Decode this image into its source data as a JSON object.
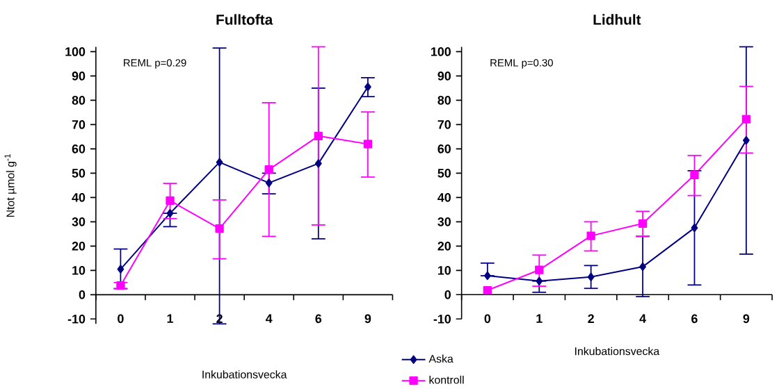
{
  "chart_data": [
    {
      "type": "line",
      "title": "Fulltofta",
      "xlabel": "Inkubationsvecka",
      "ylabel": "Ntot µmol g$^{-1}$",
      "categories": [
        "0",
        "1",
        "2",
        "4",
        "6",
        "9"
      ],
      "ylim": [
        -12,
        102
      ],
      "yticks": [
        -10,
        0,
        10,
        20,
        30,
        40,
        50,
        60,
        70,
        80,
        90,
        100
      ],
      "legend": "bottom right",
      "annotations": [
        "REML p=0.29"
      ],
      "series": [
        {
          "name": "Aska",
          "color": "#000080",
          "marker": "diamond",
          "values": [
            10.5,
            33.5,
            54.5,
            46,
            54,
            85.5
          ],
          "errors": [
            [
              2.5,
              18.8
            ],
            [
              28,
              33.5
            ],
            [
              -12,
              101.5
            ],
            [
              41.5,
              50
            ],
            [
              23,
              85
            ],
            [
              81.5,
              89.3
            ]
          ]
        },
        {
          "name": "kontroll",
          "color": "#ff00ff",
          "marker": "square",
          "values": [
            3.8,
            38.7,
            27.2,
            51.5,
            65.3,
            62
          ],
          "errors": [
            [
              2.5,
              5
            ],
            [
              31.3,
              45.8
            ],
            [
              14.8,
              39
            ],
            [
              24,
              79
            ],
            [
              28.7,
              102
            ],
            [
              48.4,
              75.2
            ]
          ]
        }
      ]
    },
    {
      "type": "line",
      "title": "Lidhult",
      "xlabel": "Inkubationsvecka",
      "categories": [
        "0",
        "1",
        "2",
        "4",
        "6",
        "9"
      ],
      "ylim": [
        -10,
        102
      ],
      "yticks": [
        -10,
        0,
        10,
        20,
        30,
        40,
        50,
        60,
        70,
        80,
        90,
        100
      ],
      "annotations": [
        "REML p=0.30"
      ],
      "series": [
        {
          "color": "#000080",
          "marker": "diamond",
          "values": [
            7.8,
            5.6,
            7.3,
            11.5,
            27.5,
            63.5
          ],
          "errors": [
            [
              7.8,
              13
            ],
            [
              1,
              5.6
            ],
            [
              2.6,
              12
            ],
            [
              -0.8,
              24
            ],
            [
              4,
              51
            ],
            [
              16.7,
              102
            ]
          ]
        },
        {
          "color": "#ff00ff",
          "marker": "square",
          "values": [
            1.8,
            10.2,
            24.2,
            29.3,
            49.3,
            72.2
          ],
          "errors": [
            null,
            [
              3.5,
              16.3
            ],
            [
              18,
              30
            ],
            [
              24,
              34.3
            ],
            [
              40.8,
              57.3
            ],
            [
              58.3,
              85.7
            ]
          ]
        }
      ]
    }
  ]
}
